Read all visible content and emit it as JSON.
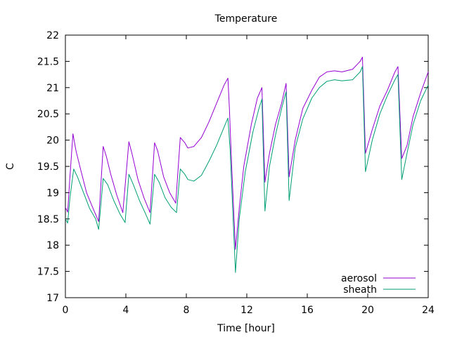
{
  "chart_data": {
    "type": "line",
    "title": "Temperature",
    "xlabel": "Time [hour]",
    "ylabel": "C",
    "xlim": [
      0,
      24
    ],
    "ylim": [
      17,
      22
    ],
    "xticks": [
      0,
      4,
      8,
      12,
      16,
      20,
      24
    ],
    "yticks": [
      17,
      17.5,
      18,
      18.5,
      19,
      19.5,
      20,
      20.5,
      21,
      21.5,
      22
    ],
    "xtick_labels": [
      "0",
      "4",
      "8",
      "12",
      "16",
      "20",
      "24"
    ],
    "ytick_labels": [
      "17",
      "17.5",
      "18",
      "18.5",
      "19",
      "19.5",
      "20",
      "20.5",
      "21",
      "21.5",
      "22"
    ],
    "grid": false,
    "legend_position": "bottom-right",
    "series": [
      {
        "name": "aerosol",
        "color": "#9400d3",
        "points": [
          [
            0.0,
            18.72
          ],
          [
            0.15,
            18.63
          ],
          [
            0.3,
            19.3
          ],
          [
            0.5,
            20.12
          ],
          [
            0.7,
            19.8
          ],
          [
            1.0,
            19.45
          ],
          [
            1.4,
            19.0
          ],
          [
            1.8,
            18.72
          ],
          [
            2.2,
            18.45
          ],
          [
            2.5,
            19.88
          ],
          [
            2.7,
            19.7
          ],
          [
            3.0,
            19.35
          ],
          [
            3.4,
            18.95
          ],
          [
            3.8,
            18.62
          ],
          [
            4.2,
            19.97
          ],
          [
            4.4,
            19.75
          ],
          [
            4.8,
            19.25
          ],
          [
            5.2,
            18.9
          ],
          [
            5.6,
            18.62
          ],
          [
            5.9,
            19.95
          ],
          [
            6.1,
            19.8
          ],
          [
            6.5,
            19.3
          ],
          [
            6.9,
            19.0
          ],
          [
            7.3,
            18.8
          ],
          [
            7.6,
            20.05
          ],
          [
            7.9,
            19.95
          ],
          [
            8.1,
            19.85
          ],
          [
            8.5,
            19.88
          ],
          [
            9.0,
            20.05
          ],
          [
            9.5,
            20.35
          ],
          [
            10.0,
            20.7
          ],
          [
            10.5,
            21.05
          ],
          [
            10.75,
            21.18
          ],
          [
            10.85,
            20.6
          ],
          [
            11.0,
            19.5
          ],
          [
            11.25,
            17.92
          ],
          [
            11.5,
            18.7
          ],
          [
            11.8,
            19.5
          ],
          [
            12.3,
            20.3
          ],
          [
            12.7,
            20.8
          ],
          [
            13.0,
            21.0
          ],
          [
            13.2,
            19.2
          ],
          [
            13.5,
            19.75
          ],
          [
            13.9,
            20.3
          ],
          [
            14.3,
            20.7
          ],
          [
            14.6,
            21.08
          ],
          [
            14.8,
            19.3
          ],
          [
            15.2,
            20.0
          ],
          [
            15.7,
            20.6
          ],
          [
            16.3,
            20.95
          ],
          [
            16.8,
            21.2
          ],
          [
            17.3,
            21.3
          ],
          [
            17.8,
            21.32
          ],
          [
            18.3,
            21.3
          ],
          [
            19.0,
            21.35
          ],
          [
            19.5,
            21.5
          ],
          [
            19.65,
            21.58
          ],
          [
            19.85,
            19.75
          ],
          [
            20.3,
            20.2
          ],
          [
            20.8,
            20.65
          ],
          [
            21.3,
            20.95
          ],
          [
            21.8,
            21.3
          ],
          [
            22.0,
            21.4
          ],
          [
            22.25,
            19.65
          ],
          [
            22.6,
            19.9
          ],
          [
            23.0,
            20.45
          ],
          [
            23.5,
            20.9
          ],
          [
            24.0,
            21.3
          ]
        ]
      },
      {
        "name": "sheath",
        "color": "#009e73",
        "points": [
          [
            0.0,
            18.5
          ],
          [
            0.15,
            18.42
          ],
          [
            0.3,
            18.9
          ],
          [
            0.55,
            19.45
          ],
          [
            0.8,
            19.3
          ],
          [
            1.2,
            19.0
          ],
          [
            1.6,
            18.7
          ],
          [
            2.0,
            18.5
          ],
          [
            2.2,
            18.3
          ],
          [
            2.5,
            19.27
          ],
          [
            2.8,
            19.15
          ],
          [
            3.2,
            18.85
          ],
          [
            3.6,
            18.6
          ],
          [
            3.95,
            18.43
          ],
          [
            4.2,
            19.35
          ],
          [
            4.5,
            19.15
          ],
          [
            4.9,
            18.85
          ],
          [
            5.3,
            18.6
          ],
          [
            5.6,
            18.4
          ],
          [
            5.9,
            19.35
          ],
          [
            6.2,
            19.2
          ],
          [
            6.6,
            18.9
          ],
          [
            7.0,
            18.72
          ],
          [
            7.35,
            18.62
          ],
          [
            7.6,
            19.45
          ],
          [
            7.9,
            19.35
          ],
          [
            8.1,
            19.25
          ],
          [
            8.5,
            19.22
          ],
          [
            9.0,
            19.33
          ],
          [
            9.5,
            19.6
          ],
          [
            10.0,
            19.9
          ],
          [
            10.5,
            20.25
          ],
          [
            10.75,
            20.42
          ],
          [
            10.9,
            19.8
          ],
          [
            11.05,
            18.8
          ],
          [
            11.25,
            17.48
          ],
          [
            11.5,
            18.5
          ],
          [
            11.9,
            19.4
          ],
          [
            12.4,
            20.15
          ],
          [
            12.8,
            20.6
          ],
          [
            13.0,
            20.78
          ],
          [
            13.2,
            18.65
          ],
          [
            13.5,
            19.5
          ],
          [
            13.9,
            20.1
          ],
          [
            14.3,
            20.6
          ],
          [
            14.6,
            20.92
          ],
          [
            14.8,
            18.85
          ],
          [
            15.2,
            19.85
          ],
          [
            15.7,
            20.4
          ],
          [
            16.3,
            20.8
          ],
          [
            16.8,
            21.0
          ],
          [
            17.3,
            21.12
          ],
          [
            17.8,
            21.15
          ],
          [
            18.3,
            21.13
          ],
          [
            19.0,
            21.15
          ],
          [
            19.5,
            21.3
          ],
          [
            19.65,
            21.4
          ],
          [
            19.85,
            19.4
          ],
          [
            20.3,
            20.0
          ],
          [
            20.8,
            20.5
          ],
          [
            21.3,
            20.85
          ],
          [
            21.8,
            21.15
          ],
          [
            22.0,
            21.25
          ],
          [
            22.25,
            19.25
          ],
          [
            22.6,
            19.75
          ],
          [
            23.0,
            20.3
          ],
          [
            23.5,
            20.75
          ],
          [
            24.0,
            21.05
          ]
        ]
      }
    ]
  }
}
